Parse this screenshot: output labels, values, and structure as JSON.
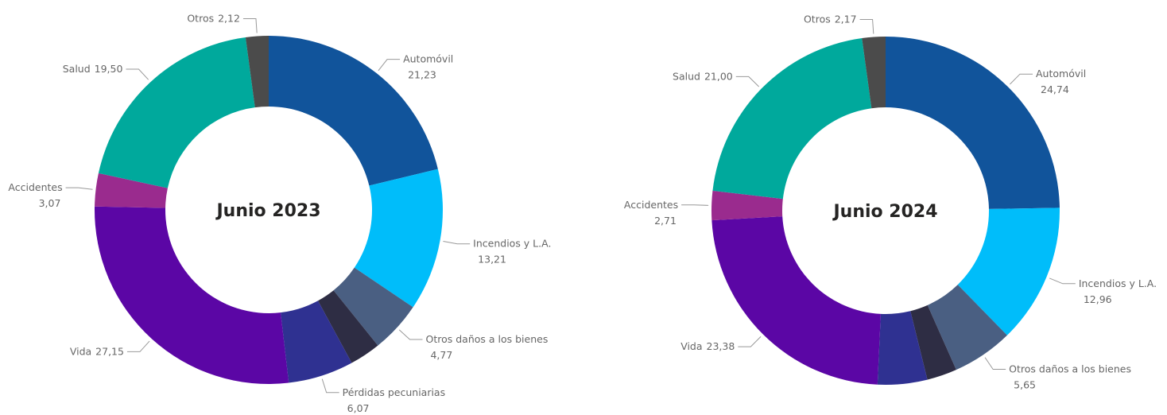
{
  "chart_data": [
    {
      "type": "donut",
      "title": "Junio 2023",
      "categories": [
        "Automóvil",
        "Incendios y L.A.",
        "Otros daños a los bienes",
        null,
        "Pérdidas pecuniarias",
        "Vida",
        "Accidentes",
        "Salud",
        "Otros"
      ],
      "values": [
        21.23,
        13.21,
        4.77,
        2.88,
        6.07,
        27.15,
        3.07,
        19.5,
        2.12
      ],
      "value_labels": [
        "21,23",
        "13,21",
        "4,77",
        null,
        "6,07",
        "27,15",
        "3,07",
        "19,50",
        "2,12"
      ],
      "colors": [
        "#11549b",
        "#00bdfa",
        "#4a5f82",
        "#2e2d44",
        "#2f3191",
        "#5b06a5",
        "#9a2b8e",
        "#00a99c",
        "#4b4b4b"
      ]
    },
    {
      "type": "donut",
      "title": "Junio 2024",
      "categories": [
        "Automóvil",
        "Incendios y L.A.",
        "Otros daños a los bienes",
        null,
        null,
        "Vida",
        "Accidentes",
        "Salud",
        "Otros"
      ],
      "values": [
        24.74,
        12.96,
        5.65,
        2.79,
        4.6,
        23.38,
        2.71,
        21.0,
        2.17
      ],
      "value_labels": [
        "24,74",
        "12,96",
        "5,65",
        null,
        null,
        "23,38",
        "2,71",
        "21,00",
        "2,17"
      ],
      "colors": [
        "#11549b",
        "#00bdfa",
        "#4a5f82",
        "#2e2d44",
        "#2f3191",
        "#5b06a5",
        "#9a2b8e",
        "#00a99c",
        "#4b4b4b"
      ]
    }
  ]
}
